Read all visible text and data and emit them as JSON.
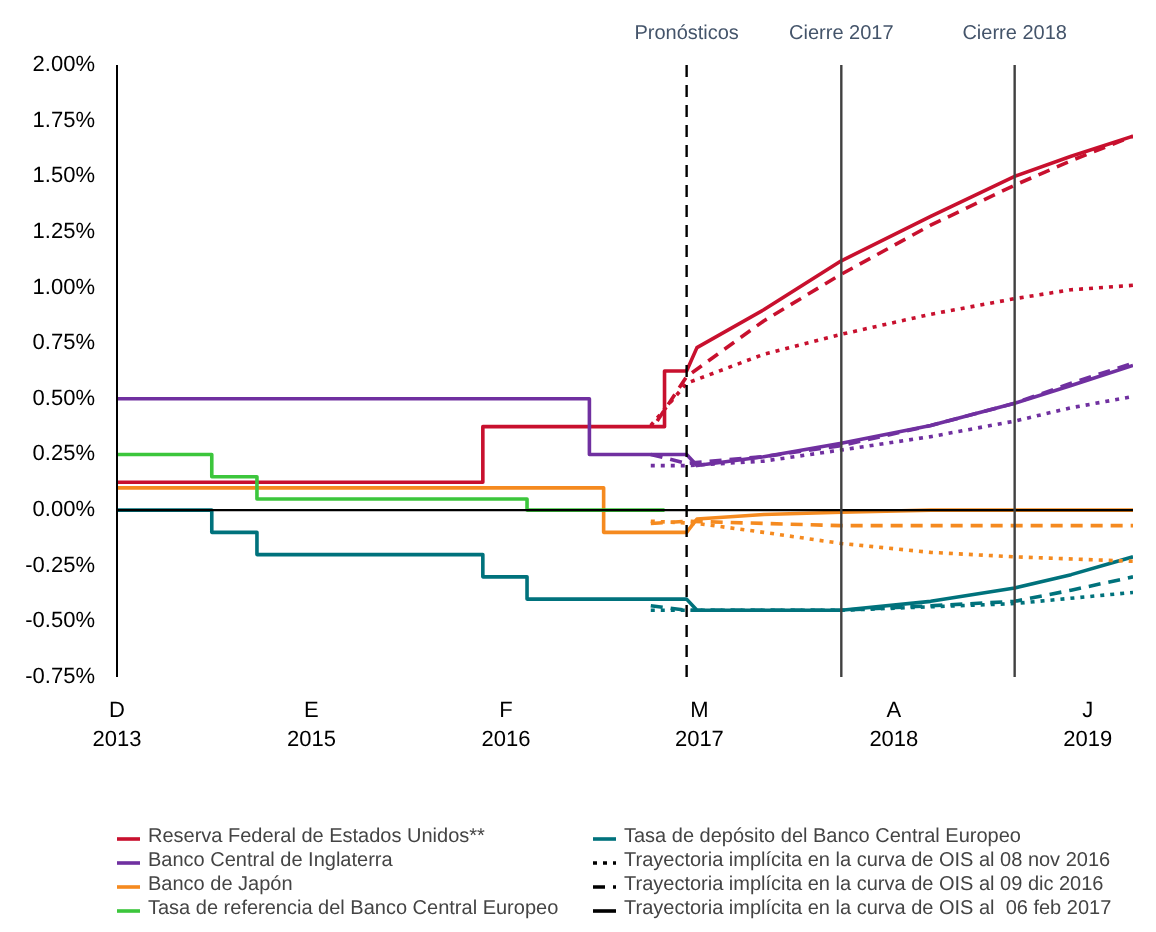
{
  "chart_data": {
    "type": "line",
    "ylim": [
      -0.75,
      2.0
    ],
    "yticks": [
      {
        "value": -0.75,
        "label": "-0.75%"
      },
      {
        "value": -0.5,
        "label": "-0.50%"
      },
      {
        "value": -0.25,
        "label": "-0.25%"
      },
      {
        "value": 0,
        "label": "0.00%"
      },
      {
        "value": 0.25,
        "label": "0.25%"
      },
      {
        "value": 0.5,
        "label": "0.50%"
      },
      {
        "value": 0.75,
        "label": "0.75%"
      },
      {
        "value": 1.0,
        "label": "1.00%"
      },
      {
        "value": 1.25,
        "label": "1.25%"
      },
      {
        "value": 1.5,
        "label": "1.50%"
      },
      {
        "value": 1.75,
        "label": "1.75%"
      },
      {
        "value": 2.0,
        "label": "2.00%"
      }
    ],
    "xlim": [
      "2013-12-01",
      "2019-08-01"
    ],
    "xticks": [
      {
        "value": "2013-12-01",
        "label": "D\n2013"
      },
      {
        "value": "2015-01-01",
        "label": "E\n2015"
      },
      {
        "value": "2016-02-01",
        "label": "F\n2016"
      },
      {
        "value": "2017-03-01",
        "label": "M\n2017"
      },
      {
        "value": "2018-04-01",
        "label": "A\n2018"
      },
      {
        "value": "2019-05-01",
        "label": "J\n2019"
      }
    ],
    "grid": false,
    "legend": "bottom",
    "ref_lines": [
      {
        "axis": "y",
        "value": 0,
        "label": null,
        "color": "#000000",
        "line_style": "solid"
      },
      {
        "axis": "x",
        "value": "2017-02-03",
        "label": "Pronósticos",
        "color": "#000000",
        "line_style": "dashed"
      },
      {
        "axis": "x",
        "value": "2017-12-15",
        "label": "Cierre 2017",
        "color": "#404040",
        "line_style": "solid"
      },
      {
        "axis": "x",
        "value": "2018-12-03",
        "label": "Cierre 2018",
        "color": "#404040",
        "line_style": "solid"
      }
    ],
    "series": [
      {
        "name": "Reserva Federal de Estados Unidos**",
        "color": "#c8102e",
        "line_style": "solid",
        "x": [
          "2013-12-01",
          "2015-12-16",
          "2015-12-16",
          "2016-12-20",
          "2016-12-20",
          "2017-02-03",
          "2017-02-24",
          "2017-07-10",
          "2017-12-15",
          "2018-06-15",
          "2018-12-03",
          "2019-03-28",
          "2019-08-01"
        ],
        "values": [
          0.125,
          0.125,
          0.375,
          0.375,
          0.625,
          0.625,
          0.73,
          0.9,
          1.12,
          1.32,
          1.5,
          1.59,
          1.68
        ]
      },
      {
        "name": "Banco Central de Inglaterra",
        "color": "#7030a0",
        "line_style": "solid",
        "x": [
          "2013-12-01",
          "2016-07-20",
          "2016-07-20",
          "2017-02-03",
          "2017-02-24",
          "2017-07-10",
          "2017-12-15",
          "2018-06-15",
          "2018-12-03",
          "2019-03-28",
          "2019-08-01"
        ],
        "values": [
          0.5,
          0.5,
          0.25,
          0.25,
          0.2,
          0.24,
          0.3,
          0.38,
          0.48,
          0.56,
          0.65
        ]
      },
      {
        "name": "Banco de Japón",
        "color": "#f58a1f",
        "line_style": "solid",
        "x": [
          "2013-12-01",
          "2016-08-18",
          "2016-08-18",
          "2017-02-03",
          "2017-02-24",
          "2017-07-10",
          "2017-12-15",
          "2018-06-15",
          "2019-08-01"
        ],
        "values": [
          0.1,
          0.1,
          -0.1,
          -0.1,
          -0.04,
          -0.02,
          -0.01,
          0.0,
          0.0
        ]
      },
      {
        "name": "Tasa de referencia del Banco Central Europeo",
        "color": "#3cc63c",
        "line_style": "solid",
        "x": [
          "2013-12-01",
          "2014-06-12",
          "2014-06-12",
          "2014-09-12",
          "2014-09-12",
          "2016-03-15",
          "2016-03-15",
          "2016-12-20"
        ],
        "values": [
          0.25,
          0.25,
          0.15,
          0.15,
          0.05,
          0.05,
          0.0,
          0.0
        ]
      },
      {
        "name": "Tasa de depósito del Banco Central Europeo",
        "color": "#00727c",
        "line_style": "solid",
        "x": [
          "2013-12-01",
          "2014-06-12",
          "2014-06-12",
          "2014-09-12",
          "2014-09-12",
          "2015-12-16",
          "2015-12-16",
          "2016-03-15",
          "2016-03-15",
          "2017-02-03",
          "2017-02-24",
          "2017-07-10",
          "2017-12-15",
          "2018-06-15",
          "2018-12-03",
          "2019-03-28",
          "2019-08-01"
        ],
        "values": [
          0.0,
          0.0,
          -0.1,
          -0.1,
          -0.2,
          -0.2,
          -0.3,
          -0.3,
          -0.4,
          -0.4,
          -0.45,
          -0.45,
          -0.45,
          -0.41,
          -0.35,
          -0.29,
          -0.21
        ]
      },
      {
        "name": "Trayectoria implícita en la curva de OIS al 08 nov 2016",
        "color": "#000000",
        "line_style": "dotted"
      },
      {
        "name": "Trayectoria implícita en la curva de OIS al 09 dic 2016",
        "color": "#000000",
        "line_style": "dashed"
      },
      {
        "name": "Trayectoria implícita en la curva de OIS al  06 feb 2017",
        "color": "#000000",
        "line_style": "solid"
      },
      {
        "color": "#c8102e",
        "line_style": "dashed",
        "x": [
          "2016-12-05",
          "2017-02-03",
          "2017-07-10",
          "2017-12-15",
          "2018-06-15",
          "2018-12-03",
          "2019-03-28",
          "2019-08-01"
        ],
        "values": [
          0.4,
          0.6,
          0.85,
          1.06,
          1.28,
          1.46,
          1.57,
          1.68
        ]
      },
      {
        "color": "#c8102e",
        "line_style": "dotted",
        "x": [
          "2016-11-22",
          "2017-02-03",
          "2017-07-10",
          "2017-12-15",
          "2018-06-15",
          "2018-12-03",
          "2019-03-28",
          "2019-08-01"
        ],
        "values": [
          0.38,
          0.57,
          0.7,
          0.79,
          0.88,
          0.95,
          0.99,
          1.01
        ]
      },
      {
        "color": "#7030a0",
        "line_style": "dashed",
        "x": [
          "2016-11-22",
          "2017-02-03",
          "2017-07-10",
          "2017-12-15",
          "2018-06-15",
          "2018-12-03",
          "2019-03-28",
          "2019-08-01"
        ],
        "values": [
          0.25,
          0.21,
          0.24,
          0.29,
          0.38,
          0.48,
          0.57,
          0.66
        ]
      },
      {
        "color": "#7030a0",
        "line_style": "dotted",
        "x": [
          "2016-11-22",
          "2017-02-03",
          "2017-07-10",
          "2017-12-15",
          "2018-06-15",
          "2018-12-03",
          "2019-03-28",
          "2019-08-01"
        ],
        "values": [
          0.2,
          0.2,
          0.22,
          0.27,
          0.33,
          0.4,
          0.46,
          0.51
        ]
      },
      {
        "color": "#f58a1f",
        "line_style": "dashed",
        "x": [
          "2016-11-22",
          "2017-02-03",
          "2017-12-15",
          "2019-08-01"
        ],
        "values": [
          -0.06,
          -0.05,
          -0.07,
          -0.07
        ]
      },
      {
        "color": "#f58a1f",
        "line_style": "dotted",
        "x": [
          "2016-11-22",
          "2017-02-24",
          "2017-07-10",
          "2017-12-15",
          "2018-06-15",
          "2018-12-03",
          "2019-08-01"
        ],
        "values": [
          -0.05,
          -0.06,
          -0.1,
          -0.15,
          -0.19,
          -0.21,
          -0.23
        ]
      },
      {
        "color": "#00727c",
        "line_style": "dashed",
        "x": [
          "2016-11-22",
          "2017-02-03",
          "2017-12-15",
          "2018-06-15",
          "2018-12-03",
          "2019-03-28",
          "2019-08-01"
        ],
        "values": [
          -0.43,
          -0.45,
          -0.45,
          -0.43,
          -0.41,
          -0.36,
          -0.3
        ]
      },
      {
        "color": "#00727c",
        "line_style": "dotted",
        "x": [
          "2016-11-22",
          "2017-12-15",
          "2018-12-03",
          "2019-08-01"
        ],
        "values": [
          -0.45,
          -0.45,
          -0.42,
          -0.37
        ]
      }
    ]
  }
}
